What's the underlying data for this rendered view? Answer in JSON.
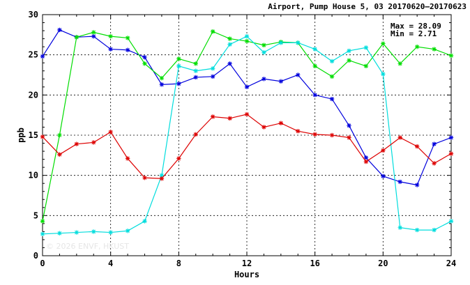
{
  "chart_data": {
    "type": "line",
    "title": "Airport, Pump House 5, 03 20170620—20170623",
    "xlabel": "Hours",
    "ylabel": "ppb",
    "xlim": [
      0,
      24
    ],
    "ylim": [
      0,
      30
    ],
    "xticks": [
      0,
      4,
      8,
      12,
      16,
      20,
      24
    ],
    "yticks": [
      0,
      5,
      10,
      15,
      20,
      25,
      30
    ],
    "grid": true,
    "stats": {
      "max_text": "Max = 28.09",
      "min_text": "Min =  2.71"
    },
    "watermark": "© 2026 ENVF, HKUST",
    "x": [
      0,
      1,
      2,
      3,
      4,
      5,
      6,
      7,
      8,
      9,
      10,
      11,
      12,
      13,
      14,
      15,
      16,
      17,
      18,
      19,
      20,
      21,
      22,
      23,
      24
    ],
    "series": [
      {
        "color": "#0000dd",
        "values": [
          24.8,
          28.1,
          27.2,
          27.3,
          25.7,
          25.6,
          24.7,
          21.3,
          21.4,
          22.2,
          22.3,
          23.9,
          21.0,
          22.0,
          21.7,
          22.5,
          20.0,
          19.5,
          16.2,
          12.2,
          9.9,
          9.2,
          8.8,
          13.9,
          14.7
        ]
      },
      {
        "color": "#00dd00",
        "values": [
          4.3,
          15.0,
          27.2,
          27.8,
          27.3,
          27.1,
          23.9,
          22.1,
          24.5,
          23.9,
          27.9,
          27.0,
          26.7,
          26.2,
          26.6,
          26.5,
          23.6,
          22.3,
          24.3,
          23.6,
          26.4,
          23.9,
          26.0,
          25.7,
          24.9
        ]
      },
      {
        "color": "#00dddd",
        "values": [
          2.71,
          2.8,
          2.9,
          3.0,
          2.9,
          3.1,
          4.3,
          10.0,
          23.6,
          23.0,
          23.3,
          26.3,
          27.3,
          25.3,
          26.5,
          26.5,
          25.7,
          24.2,
          25.5,
          25.9,
          22.6,
          3.5,
          3.2,
          3.2,
          4.3
        ]
      },
      {
        "color": "#dd0000",
        "values": [
          14.8,
          12.6,
          13.9,
          14.1,
          15.4,
          12.1,
          9.7,
          9.6,
          12.1,
          15.1,
          17.3,
          17.1,
          17.6,
          16.0,
          16.5,
          15.5,
          15.1,
          15.0,
          14.7,
          11.7,
          13.1,
          14.7,
          13.6,
          11.5,
          12.7
        ]
      }
    ]
  }
}
